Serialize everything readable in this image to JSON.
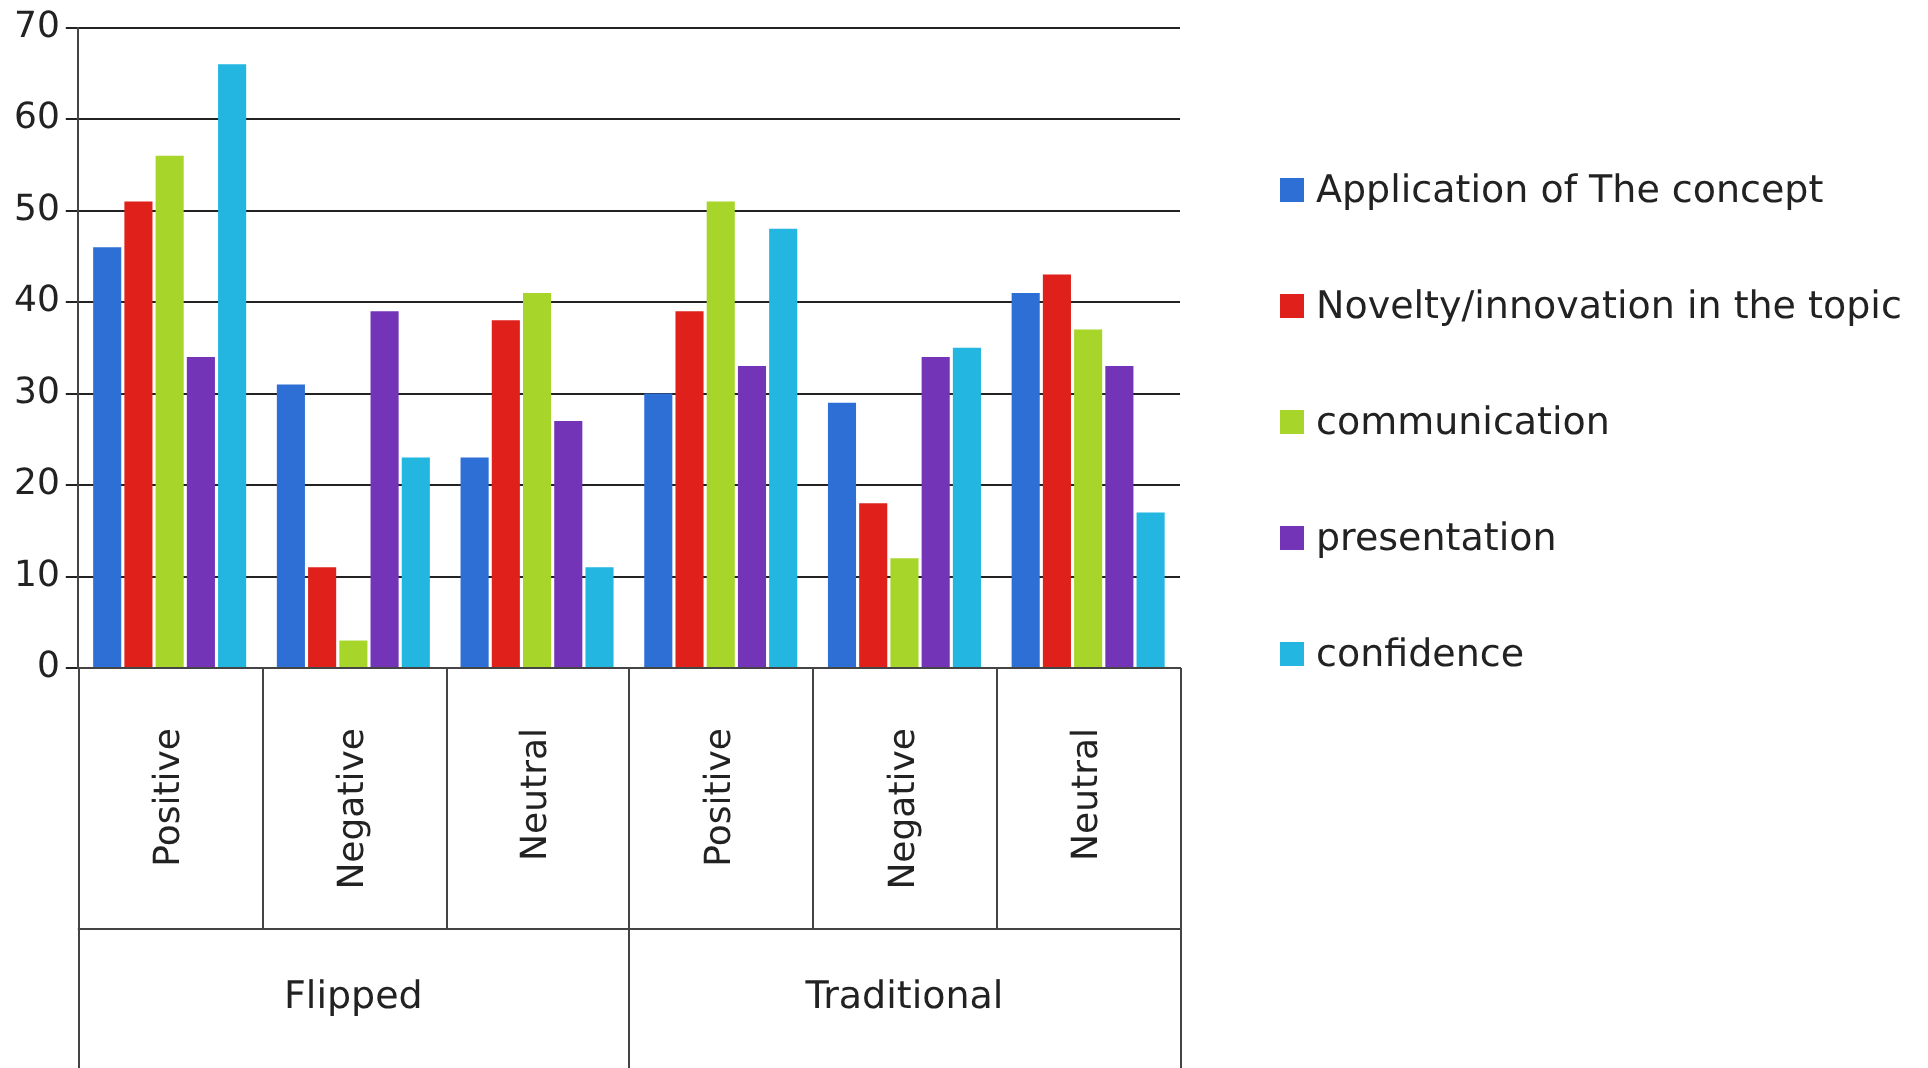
{
  "chart_data": {
    "type": "bar",
    "categories": [
      "Positive",
      "Negative",
      "Neutral",
      "Positive",
      "Negative",
      "Neutral"
    ],
    "series": [
      {
        "name": "Application of The concept",
        "color": "#2e6fd6",
        "values": [
          46,
          31,
          23,
          30,
          29,
          41
        ]
      },
      {
        "name": "Novelty/innovation in the topic",
        "color": "#e0201b",
        "values": [
          51,
          11,
          38,
          39,
          18,
          43
        ]
      },
      {
        "name": "communication",
        "color": "#a8d52a",
        "values": [
          56,
          3,
          41,
          51,
          12,
          37
        ]
      },
      {
        "name": "presentation",
        "color": "#7334b8",
        "values": [
          34,
          39,
          27,
          33,
          34,
          33
        ]
      },
      {
        "name": "confidence",
        "color": "#22b6e0",
        "values": [
          66,
          23,
          11,
          48,
          35,
          17
        ]
      }
    ],
    "annotations": [
      "Flipped",
      "Traditional"
    ],
    "ylim": [
      0,
      70
    ],
    "yticks": [
      0,
      10,
      20,
      30,
      40,
      50,
      60,
      70
    ],
    "grid": "y",
    "legend": "right"
  }
}
